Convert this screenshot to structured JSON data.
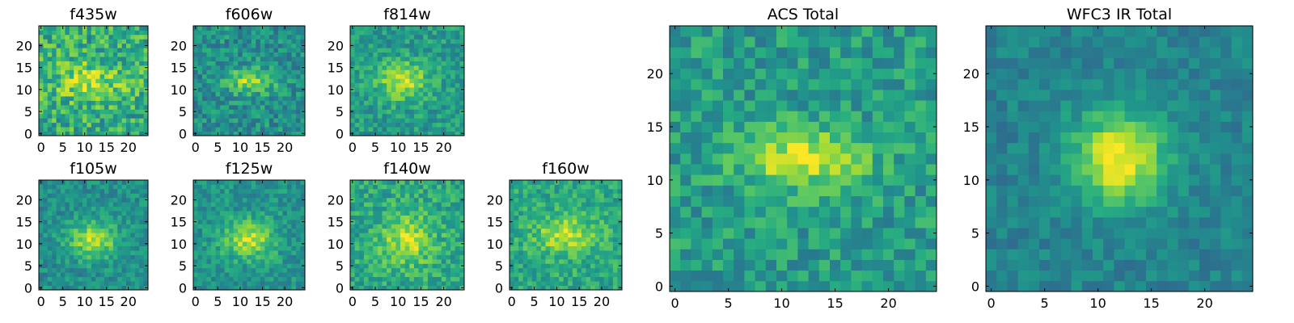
{
  "chart_data": [
    {
      "type": "heatmap",
      "title": "f435w",
      "seed": 11,
      "blob": {
        "cx": 11,
        "cy": 12,
        "rx": 6,
        "ry": 3,
        "amp": 0.25
      },
      "base": 0.62,
      "noise": 0.42,
      "xticks": [
        0,
        5,
        10,
        15,
        20
      ],
      "yticks": [
        0,
        5,
        10,
        15,
        20
      ],
      "xlim": [
        -0.5,
        24.5
      ],
      "ylim": [
        -0.5,
        24.5
      ],
      "grid_shape": [
        25,
        25
      ]
    },
    {
      "type": "heatmap",
      "title": "f606w",
      "seed": 23,
      "blob": {
        "cx": 12,
        "cy": 12,
        "rx": 4,
        "ry": 2,
        "amp": 0.35
      },
      "base": 0.5,
      "noise": 0.32,
      "xticks": [
        0,
        5,
        10,
        15,
        20
      ],
      "yticks": [
        0,
        5,
        10,
        15,
        20
      ],
      "xlim": [
        -0.5,
        24.5
      ],
      "ylim": [
        -0.5,
        24.5
      ],
      "grid_shape": [
        25,
        25
      ]
    },
    {
      "type": "heatmap",
      "title": "f814w",
      "seed": 37,
      "blob": {
        "cx": 11,
        "cy": 12,
        "rx": 4,
        "ry": 3,
        "amp": 0.35
      },
      "base": 0.55,
      "noise": 0.28,
      "xticks": [
        0,
        5,
        10,
        15,
        20
      ],
      "yticks": [
        0,
        5,
        10,
        15,
        20
      ],
      "xlim": [
        -0.5,
        24.5
      ],
      "ylim": [
        -0.5,
        24.5
      ],
      "grid_shape": [
        25,
        25
      ]
    },
    {
      "type": "heatmap",
      "title": "f105w",
      "seed": 41,
      "blob": {
        "cx": 12,
        "cy": 11,
        "rx": 4,
        "ry": 3,
        "amp": 0.38
      },
      "base": 0.5,
      "noise": 0.25,
      "xticks": [
        0,
        5,
        10,
        15,
        20
      ],
      "yticks": [
        0,
        5,
        10,
        15,
        20
      ],
      "xlim": [
        -0.5,
        24.5
      ],
      "ylim": [
        -0.5,
        24.5
      ],
      "grid_shape": [
        25,
        25
      ]
    },
    {
      "type": "heatmap",
      "title": "f125w",
      "seed": 53,
      "blob": {
        "cx": 12,
        "cy": 11,
        "rx": 4,
        "ry": 3,
        "amp": 0.38
      },
      "base": 0.52,
      "noise": 0.25,
      "xticks": [
        0,
        5,
        10,
        15,
        20
      ],
      "yticks": [
        0,
        5,
        10,
        15,
        20
      ],
      "xlim": [
        -0.5,
        24.5
      ],
      "ylim": [
        -0.5,
        24.5
      ],
      "grid_shape": [
        25,
        25
      ]
    },
    {
      "type": "heatmap",
      "title": "f140w",
      "seed": 67,
      "blob": {
        "cx": 12,
        "cy": 11,
        "rx": 4,
        "ry": 4,
        "amp": 0.3
      },
      "base": 0.6,
      "noise": 0.3,
      "xticks": [
        0,
        5,
        10,
        15,
        20
      ],
      "yticks": [
        0,
        5,
        10,
        15,
        20
      ],
      "xlim": [
        -0.5,
        24.5
      ],
      "ylim": [
        -0.5,
        24.5
      ],
      "grid_shape": [
        25,
        25
      ]
    },
    {
      "type": "heatmap",
      "title": "f160w",
      "seed": 79,
      "blob": {
        "cx": 12,
        "cy": 12,
        "rx": 5,
        "ry": 3,
        "amp": 0.3
      },
      "base": 0.6,
      "noise": 0.28,
      "xticks": [
        0,
        5,
        10,
        15,
        20
      ],
      "yticks": [
        0,
        5,
        10,
        15,
        20
      ],
      "xlim": [
        -0.5,
        24.5
      ],
      "ylim": [
        -0.5,
        24.5
      ],
      "grid_shape": [
        25,
        25
      ]
    },
    {
      "type": "heatmap",
      "title": "ACS Total",
      "seed": 97,
      "blob": {
        "cx": 12,
        "cy": 12,
        "rx": 4,
        "ry": 2,
        "amp": 0.4
      },
      "base": 0.55,
      "noise": 0.3,
      "xticks": [
        0,
        5,
        10,
        15,
        20
      ],
      "yticks": [
        0,
        5,
        10,
        15,
        20
      ],
      "xlim": [
        -0.5,
        24.5
      ],
      "ylim": [
        -0.5,
        24.5
      ],
      "grid_shape": [
        25,
        25
      ]
    },
    {
      "type": "heatmap",
      "title": "WFC3 IR Total",
      "seed": 113,
      "blob": {
        "cx": 12,
        "cy": 12,
        "rx": 3,
        "ry": 3,
        "amp": 0.55
      },
      "base": 0.45,
      "noise": 0.18,
      "xticks": [
        0,
        5,
        10,
        15,
        20
      ],
      "yticks": [
        0,
        5,
        10,
        15,
        20
      ],
      "xlim": [
        -0.5,
        24.5
      ],
      "ylim": [
        -0.5,
        24.5
      ],
      "grid_shape": [
        25,
        25
      ]
    }
  ],
  "colormap": "viridis"
}
